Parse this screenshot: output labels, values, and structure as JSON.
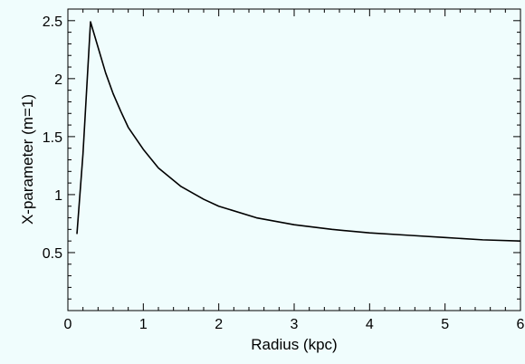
{
  "chart_data": {
    "type": "line",
    "title": "",
    "xlabel": "Radius (kpc)",
    "ylabel": "X-parameter (m=1)",
    "xlim": [
      0,
      6
    ],
    "ylim": [
      0,
      2.6
    ],
    "grid": false,
    "xticks": [
      0,
      1,
      2,
      3,
      4,
      5,
      6
    ],
    "xtick_labels": [
      "0",
      "1",
      "2",
      "3",
      "4",
      "5",
      "6"
    ],
    "yticks": [
      0.5,
      1,
      1.5,
      2,
      2.5
    ],
    "ytick_labels": [
      "0.5",
      "1",
      "1.5",
      "2",
      "2.5"
    ],
    "series": [
      {
        "color": "#000000",
        "x": [
          0.12,
          0.2,
          0.3,
          0.4,
          0.5,
          0.6,
          0.7,
          0.8,
          1.0,
          1.2,
          1.5,
          1.8,
          2.0,
          2.5,
          3.0,
          3.5,
          4.0,
          4.5,
          5.0,
          5.5,
          6.0
        ],
        "y": [
          0.66,
          1.35,
          2.49,
          2.27,
          2.05,
          1.87,
          1.72,
          1.58,
          1.39,
          1.23,
          1.07,
          0.96,
          0.9,
          0.8,
          0.74,
          0.7,
          0.67,
          0.65,
          0.63,
          0.61,
          0.6
        ]
      }
    ]
  }
}
